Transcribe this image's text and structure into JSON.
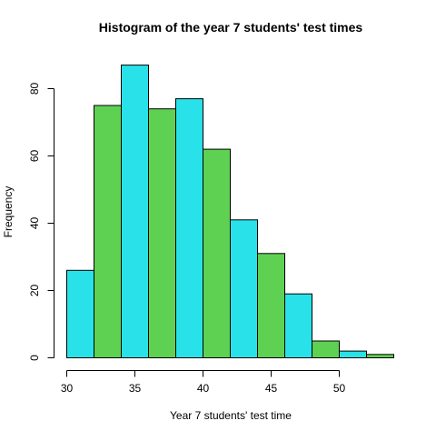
{
  "chart_data": {
    "type": "bar",
    "subtype": "histogram",
    "title": "Histogram of the year 7 students' test times",
    "xlabel": "Year 7 students' test time",
    "ylabel": "Frequency",
    "bins": [
      {
        "start": 30,
        "end": 32,
        "count": 26
      },
      {
        "start": 32,
        "end": 34,
        "count": 75
      },
      {
        "start": 34,
        "end": 36,
        "count": 87
      },
      {
        "start": 36,
        "end": 38,
        "count": 74
      },
      {
        "start": 38,
        "end": 40,
        "count": 77
      },
      {
        "start": 40,
        "end": 42,
        "count": 62
      },
      {
        "start": 42,
        "end": 44,
        "count": 41
      },
      {
        "start": 44,
        "end": 46,
        "count": 31
      },
      {
        "start": 46,
        "end": 48,
        "count": 19
      },
      {
        "start": 48,
        "end": 50,
        "count": 5
      },
      {
        "start": 50,
        "end": 52,
        "count": 2
      },
      {
        "start": 52,
        "end": 54,
        "count": 1
      }
    ],
    "bar_colors": [
      "#29e2e9",
      "#5fd152"
    ],
    "bar_border_color": "#000000",
    "xlim": [
      30,
      54
    ],
    "ylim": [
      0,
      87
    ],
    "x_ticks": [
      30,
      35,
      40,
      45,
      50
    ],
    "y_ticks": [
      0,
      20,
      40,
      60,
      80
    ],
    "grid": false,
    "legend": "none"
  }
}
